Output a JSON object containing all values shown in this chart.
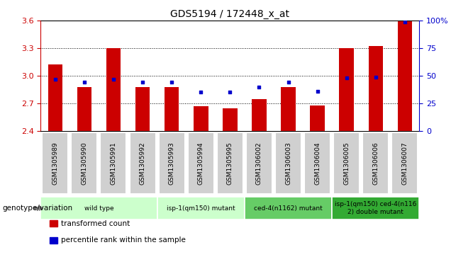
{
  "title": "GDS5194 / 172448_x_at",
  "samples": [
    "GSM1305989",
    "GSM1305990",
    "GSM1305991",
    "GSM1305992",
    "GSM1305993",
    "GSM1305994",
    "GSM1305995",
    "GSM1306002",
    "GSM1306003",
    "GSM1306004",
    "GSM1306005",
    "GSM1306006",
    "GSM1306007"
  ],
  "transformed_count": [
    3.12,
    2.88,
    3.3,
    2.88,
    2.88,
    2.67,
    2.65,
    2.75,
    2.88,
    2.68,
    3.3,
    3.32,
    3.59
  ],
  "percentile_rank": [
    47,
    44,
    47,
    44,
    44,
    35,
    35,
    40,
    44,
    36,
    48,
    49,
    99
  ],
  "ylim_left": [
    2.4,
    3.6
  ],
  "ylim_right": [
    0,
    100
  ],
  "yticks_left": [
    2.4,
    2.7,
    3.0,
    3.3,
    3.6
  ],
  "yticks_right": [
    0,
    25,
    50,
    75,
    100
  ],
  "bar_color": "#CC0000",
  "dot_color": "#0000CC",
  "bar_bottom": 2.4,
  "group_definitions": [
    {
      "start": 0,
      "end": 3,
      "label": "wild type",
      "color": "#ccffcc"
    },
    {
      "start": 4,
      "end": 6,
      "label": "isp-1(qm150) mutant",
      "color": "#ccffcc"
    },
    {
      "start": 7,
      "end": 9,
      "label": "ced-4(n1162) mutant",
      "color": "#66cc66"
    },
    {
      "start": 10,
      "end": 12,
      "label": "isp-1(qm150) ced-4(n116\n2) double mutant",
      "color": "#33aa33"
    }
  ],
  "group_label_prefix": "genotype/variation",
  "legend_items": [
    {
      "label": "transformed count",
      "color": "#CC0000"
    },
    {
      "label": "percentile rank within the sample",
      "color": "#0000CC"
    }
  ],
  "axis_color_left": "#CC0000",
  "axis_color_right": "#0000CC",
  "sample_bg_color": "#d0d0d0",
  "sample_border_color": "#ffffff"
}
